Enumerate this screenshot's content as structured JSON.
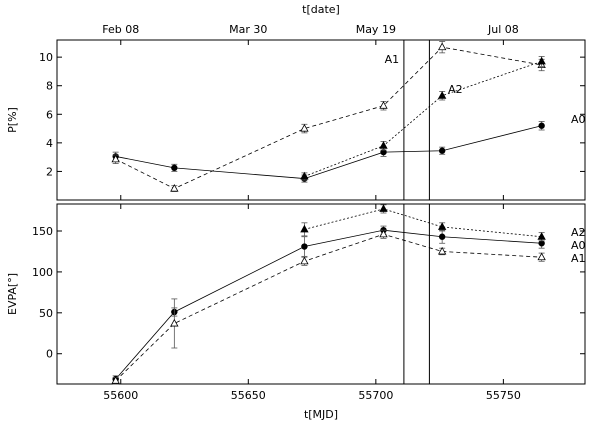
{
  "chart_data": [
    {
      "type": "line",
      "panel": "top",
      "xlabel": "t[MJD]",
      "x2label": "t[date]",
      "ylabel": "P[%]",
      "xlim": [
        55575,
        55782
      ],
      "ylim": [
        0,
        11.2
      ],
      "y_ticks": [
        2,
        4,
        6,
        8,
        10
      ],
      "x_ticks": [
        55600,
        55650,
        55700,
        55750
      ],
      "x2_ticks": [
        {
          "mjd": 55600,
          "label": "Feb 08"
        },
        {
          "mjd": 55650,
          "label": "Mar 30"
        },
        {
          "mjd": 55700,
          "label": "May 19"
        },
        {
          "mjd": 55750,
          "label": "Jul 08"
        }
      ],
      "vertical_lines": [
        {
          "x": 55711,
          "label": "A1"
        },
        {
          "x": 55721,
          "label": "A2"
        }
      ],
      "series": [
        {
          "name": "A0",
          "marker": "filled-circle",
          "dash": "solid",
          "x": [
            55598,
            55621,
            55672,
            55703,
            55726,
            55765
          ],
          "y": [
            3.05,
            2.25,
            1.5,
            3.35,
            3.45,
            5.2
          ],
          "err": [
            0.3,
            0.25,
            0.25,
            0.3,
            0.25,
            0.3
          ]
        },
        {
          "name": "A1",
          "marker": "open-triangle",
          "dash": "dashed",
          "x": [
            55598,
            55621,
            55672,
            55703,
            55726,
            55765
          ],
          "y": [
            2.85,
            0.8,
            5.0,
            6.6,
            10.7,
            9.45
          ],
          "err": [
            0.3,
            0.2,
            0.3,
            0.3,
            0.4,
            0.4
          ]
        },
        {
          "name": "A2",
          "marker": "filled-triangle",
          "dash": "dotted",
          "x": [
            55672,
            55703,
            55726,
            55765
          ],
          "y": [
            1.65,
            3.8,
            7.3,
            9.7
          ],
          "err": [
            0.25,
            0.3,
            0.3,
            0.35
          ]
        }
      ]
    },
    {
      "type": "line",
      "panel": "bottom",
      "xlabel": "t[MJD]",
      "ylabel": "EVPA[°]",
      "xlim": [
        55575,
        55782
      ],
      "ylim": [
        -37,
        183
      ],
      "y_ticks": [
        0,
        50,
        100,
        150
      ],
      "x_ticks": [
        55600,
        55650,
        55700,
        55750
      ],
      "vertical_lines": [
        {
          "x": 55711
        },
        {
          "x": 55721
        }
      ],
      "series": [
        {
          "name": "A0",
          "marker": "filled-circle",
          "dash": "solid",
          "x": [
            55598,
            55621,
            55672,
            55703,
            55726,
            55765
          ],
          "y": [
            -31,
            51,
            131,
            151,
            143,
            135
          ],
          "err": [
            4,
            5,
            12,
            5,
            8,
            6
          ]
        },
        {
          "name": "A1",
          "marker": "open-triangle",
          "dash": "dashed",
          "x": [
            55598,
            55621,
            55672,
            55703,
            55726,
            55765
          ],
          "y": [
            -33,
            37,
            113,
            146,
            125,
            118
          ],
          "err": [
            4,
            30,
            5,
            5,
            4,
            5
          ]
        },
        {
          "name": "A2",
          "marker": "filled-triangle",
          "dash": "dotted",
          "x": [
            55672,
            55703,
            55726,
            55765
          ],
          "y": [
            152,
            177,
            155,
            143
          ],
          "err": [
            8,
            5,
            5,
            5
          ]
        }
      ]
    }
  ]
}
